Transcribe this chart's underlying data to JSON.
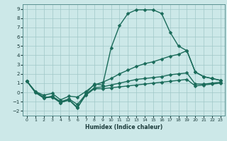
{
  "xlabel": "Humidex (Indice chaleur)",
  "xlim": [
    -0.5,
    23.5
  ],
  "ylim": [
    -2.5,
    9.5
  ],
  "xticks": [
    0,
    1,
    2,
    3,
    4,
    5,
    6,
    7,
    8,
    9,
    10,
    11,
    12,
    13,
    14,
    15,
    16,
    17,
    18,
    19,
    20,
    21,
    22,
    23
  ],
  "yticks": [
    -2,
    -1,
    0,
    1,
    2,
    3,
    4,
    5,
    6,
    7,
    8,
    9
  ],
  "bg_color": "#cce8e8",
  "line_color": "#1a6b5a",
  "grid_color": "#a0c8c8",
  "line_width": 1.0,
  "marker": "D",
  "marker_size": 2.5,
  "x": [
    0,
    1,
    2,
    3,
    4,
    5,
    6,
    7,
    8,
    9,
    10,
    11,
    12,
    13,
    14,
    15,
    16,
    17,
    18,
    19,
    20,
    21,
    22,
    23
  ],
  "y_bell": [
    1.2,
    0.1,
    -0.5,
    -0.5,
    -1.1,
    -0.8,
    -1.7,
    -0.1,
    0.9,
    0.8,
    4.8,
    7.2,
    8.5,
    8.9,
    8.9,
    8.9,
    8.5,
    6.5,
    5.0,
    4.5,
    2.2,
    1.7,
    1.5,
    1.3
  ],
  "y_diag": [
    1.2,
    0.1,
    -0.3,
    -0.1,
    -0.8,
    -0.4,
    -0.5,
    0.1,
    0.8,
    1.1,
    1.5,
    2.0,
    2.4,
    2.8,
    3.1,
    3.3,
    3.6,
    3.9,
    4.1,
    4.5,
    2.2,
    1.7,
    1.5,
    1.3
  ],
  "y_flat1": [
    1.2,
    0.0,
    -0.6,
    -0.4,
    -1.0,
    -0.7,
    -1.3,
    -0.2,
    0.5,
    0.6,
    0.8,
    1.0,
    1.2,
    1.4,
    1.5,
    1.6,
    1.7,
    1.9,
    2.0,
    2.1,
    0.9,
    0.9,
    1.0,
    1.1
  ],
  "y_flat2": [
    1.2,
    0.0,
    -0.6,
    -0.5,
    -1.1,
    -0.8,
    -1.6,
    -0.3,
    0.4,
    0.4,
    0.5,
    0.6,
    0.7,
    0.8,
    0.9,
    1.0,
    1.1,
    1.2,
    1.3,
    1.4,
    0.7,
    0.8,
    0.9,
    1.0
  ]
}
